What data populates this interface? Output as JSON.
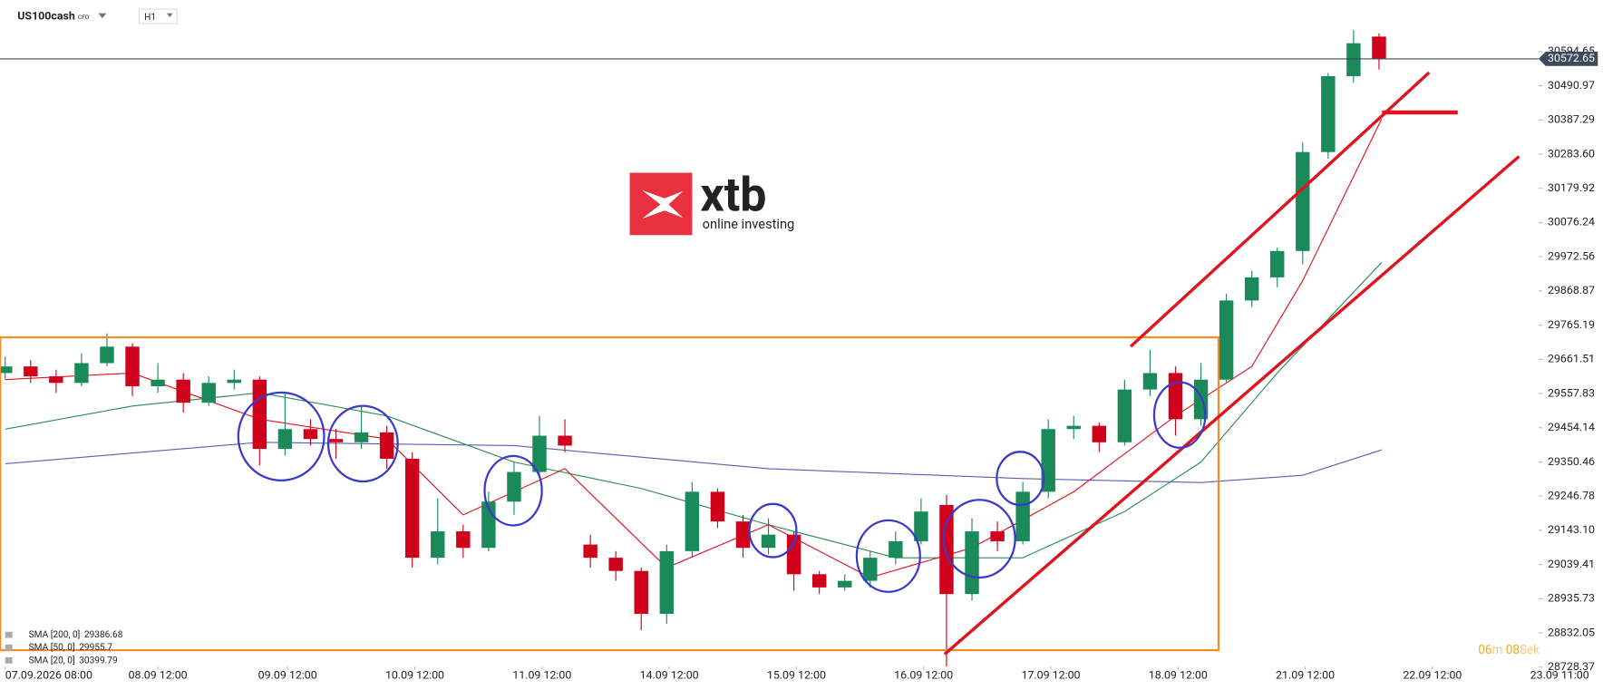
{
  "header": {
    "symbol": "US100cash",
    "instrument": "CFD",
    "timeframe": "H1"
  },
  "logo": {
    "brand": "xtb",
    "tagline": "online investing"
  },
  "timer": {
    "minutes": "06",
    "minutes_unit": "m",
    "seconds": "08",
    "seconds_unit": "Sek"
  },
  "chart_data": {
    "type": "candlestick",
    "up_color": "#1b8a5a",
    "down_color": "#d0021b",
    "open": [
      29620,
      29640,
      29610,
      29590,
      29650,
      29700,
      29580,
      29600,
      29530,
      29590,
      29600,
      29390,
      29450,
      29420,
      29410,
      29440,
      29360,
      29060,
      29140,
      29090,
      29230,
      29320,
      29430,
      29100,
      29060,
      29020,
      28890,
      29080,
      29260,
      29170,
      29090,
      29130,
      29010,
      28970,
      28990,
      29060,
      29110,
      29220,
      28950,
      29140,
      29110,
      29260,
      29450,
      29460,
      29410,
      29570,
      29620,
      29480,
      29600,
      29840,
      29910,
      29990,
      30290,
      30520,
      30640
    ],
    "high": [
      29670,
      29660,
      29630,
      29680,
      29740,
      29710,
      29650,
      29620,
      29610,
      29630,
      29610,
      29560,
      29480,
      29450,
      29520,
      29460,
      29380,
      29240,
      29160,
      29260,
      29350,
      29490,
      29480,
      29130,
      29080,
      29030,
      29100,
      29290,
      29270,
      29190,
      29180,
      29140,
      29020,
      29010,
      29080,
      29140,
      29240,
      29250,
      29180,
      29170,
      29290,
      29480,
      29490,
      29470,
      29600,
      29690,
      29640,
      29650,
      29860,
      29930,
      30000,
      30320,
      30530,
      30660,
      30650
    ],
    "low": [
      29600,
      29590,
      29560,
      29580,
      29640,
      29550,
      29560,
      29500,
      29520,
      29570,
      29340,
      29370,
      29400,
      29360,
      29390,
      29330,
      29030,
      29040,
      29060,
      29080,
      29190,
      29300,
      29380,
      29030,
      28990,
      28840,
      28860,
      29060,
      29150,
      29060,
      29070,
      28960,
      28950,
      28960,
      28970,
      29040,
      29100,
      28730,
      28930,
      29080,
      29100,
      29240,
      29420,
      29380,
      29400,
      29550,
      29430,
      29460,
      29590,
      29820,
      29880,
      29950,
      30270,
      30500,
      30540
    ],
    "close": [
      29640,
      29610,
      29590,
      29650,
      29700,
      29580,
      29600,
      29530,
      29590,
      29600,
      29390,
      29450,
      29420,
      29410,
      29440,
      29360,
      29060,
      29140,
      29090,
      29230,
      29320,
      29430,
      29400,
      29060,
      29020,
      28890,
      29080,
      29260,
      29170,
      29090,
      29130,
      29010,
      28970,
      28990,
      29060,
      29110,
      29200,
      28950,
      29140,
      29110,
      29260,
      29450,
      29460,
      29410,
      29570,
      29620,
      29480,
      29600,
      29840,
      29910,
      29990,
      30290,
      30520,
      30620,
      30572.65
    ],
    "current_price": 30572.65,
    "sma": [
      {
        "name": "SMA [200, 0]",
        "value": 29386.68,
        "color": "#5a5fb0",
        "x": [
          0,
          10,
          20,
          30,
          40,
          47,
          51,
          54.1
        ],
        "values": [
          29345,
          29410,
          29400,
          29330,
          29300,
          29288,
          29310,
          29387
        ]
      },
      {
        "name": "SMA [50, 0]",
        "value": 29955.7,
        "color": "#2e8b57",
        "x": [
          0,
          5,
          10,
          15,
          20,
          25,
          30,
          35,
          40,
          44,
          47,
          50,
          54.1
        ],
        "values": [
          29450,
          29520,
          29560,
          29490,
          29350,
          29270,
          29160,
          29060,
          29060,
          29200,
          29350,
          29620,
          29955
        ]
      },
      {
        "name": "SMA [20, 0]",
        "value": 30399.79,
        "color": "#e0141e",
        "x": [
          0,
          5,
          10,
          15,
          18,
          22,
          26,
          30,
          34,
          38,
          42,
          46,
          49,
          51,
          54.1
        ],
        "values": [
          29600,
          29620,
          29480,
          29420,
          29190,
          29330,
          29030,
          29160,
          29000,
          29090,
          29260,
          29490,
          29640,
          29900,
          30390
        ]
      }
    ],
    "xlim": [
      0,
      62.8
    ],
    "xticks": [
      {
        "value": 0,
        "label": "07.09.2026 08:00"
      },
      {
        "value": 6,
        "label": "08.09 12:00"
      },
      {
        "value": 11.1,
        "label": "09.09 12:00"
      },
      {
        "value": 16.1,
        "label": "10.09 12:00"
      },
      {
        "value": 21.1,
        "label": "11.09 12:00"
      },
      {
        "value": 26.1,
        "label": "14.09 12:00"
      },
      {
        "value": 31.1,
        "label": "15.09 12:00"
      },
      {
        "value": 36.1,
        "label": "16.09 12:00"
      },
      {
        "value": 41.1,
        "label": "17.09 12:00"
      },
      {
        "value": 46.1,
        "label": "18.09 12:00"
      },
      {
        "value": 51.1,
        "label": "21.09 12:00"
      },
      {
        "value": 56.1,
        "label": "22.09 12:00"
      },
      {
        "value": 61.1,
        "label": "23.09 11:00"
      }
    ],
    "ylim": [
      28721,
      30751
    ],
    "yticks": [
      30594.65,
      30490.97,
      30387.29,
      {
        "value": 30283.6,
        "label": "30283.60"
      },
      30179.92,
      30076.24,
      29972.56,
      29868.87,
      29765.19,
      29661.51,
      29557.83,
      29454.14,
      29350.46,
      29246.78,
      {
        "value": 29143.1,
        "label": "29143.10"
      },
      29039.41,
      28935.73,
      28832.05,
      28728.37
    ]
  }
}
